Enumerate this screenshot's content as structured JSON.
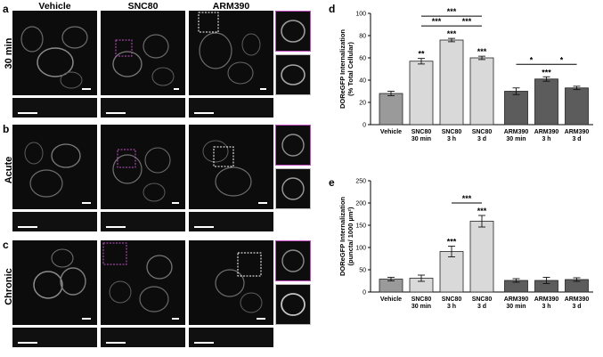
{
  "panel_letters": {
    "a": "a",
    "b": "b",
    "c": "c",
    "d": "d",
    "e": "e"
  },
  "micrograph_columns": [
    "Vehicle",
    "SNC80",
    "ARM390"
  ],
  "micrograph_rows": [
    "30 min",
    "Acute",
    "Chronic"
  ],
  "colors": {
    "vehicle_bar": "#9a9a9a",
    "snc80_bar": "#d9d9d9",
    "arm390_bar": "#5c5c5c",
    "inset_frame_snc80": "#c34fc3",
    "inset_frame_arm390": "#ffffff"
  },
  "chart_data": [
    {
      "type": "bar",
      "ylabel_line1": "DOReGFP Internalization",
      "ylabel_line2": "(% Total Cellular)",
      "categories": [
        {
          "l1": "Vehicle",
          "l2": ""
        },
        {
          "l1": "SNC80",
          "l2": "30 min"
        },
        {
          "l1": "SNC80",
          "l2": "3 h"
        },
        {
          "l1": "SNC80",
          "l2": "3 d"
        },
        {
          "l1": "ARM390",
          "l2": "30 min"
        },
        {
          "l1": "ARM390",
          "l2": "3 h"
        },
        {
          "l1": "ARM390",
          "l2": "3 d"
        }
      ],
      "values": [
        28,
        57,
        76,
        60,
        30,
        41,
        33
      ],
      "errors": [
        2,
        2.5,
        1.5,
        1.5,
        3,
        2,
        1.5
      ],
      "bar_colors": [
        "#9a9a9a",
        "#d9d9d9",
        "#d9d9d9",
        "#d9d9d9",
        "#5c5c5c",
        "#5c5c5c",
        "#5c5c5c"
      ],
      "ylim": [
        0,
        100
      ],
      "yticks": [
        0,
        20,
        40,
        60,
        80,
        100
      ],
      "bar_significance": [
        "",
        "**",
        "***",
        "***",
        "",
        "***",
        ""
      ],
      "comparisons": [
        {
          "from": 1,
          "to": 2,
          "label": "***",
          "level": 0
        },
        {
          "from": 2,
          "to": 3,
          "label": "***",
          "level": 0
        },
        {
          "from": 1,
          "to": 3,
          "label": "***",
          "level": 1
        },
        {
          "from": 4,
          "to": 5,
          "label": "*",
          "level": 0
        },
        {
          "from": 5,
          "to": 6,
          "label": "*",
          "level": 0
        }
      ]
    },
    {
      "type": "bar",
      "ylabel_line1": "DOReGFP Internalization",
      "ylabel_line2": "(puncta/ 1000 µm²)",
      "categories": [
        {
          "l1": "Vehicle",
          "l2": ""
        },
        {
          "l1": "SNC80",
          "l2": "30 min"
        },
        {
          "l1": "SNC80",
          "l2": "3 h"
        },
        {
          "l1": "SNC80",
          "l2": "3 d"
        },
        {
          "l1": "ARM390",
          "l2": "30 min"
        },
        {
          "l1": "ARM390",
          "l2": "3 h"
        },
        {
          "l1": "ARM390",
          "l2": "3 d"
        }
      ],
      "values": [
        29,
        31,
        91,
        159,
        26,
        26,
        28
      ],
      "errors": [
        4,
        7,
        12,
        13,
        4,
        7,
        4
      ],
      "bar_colors": [
        "#9a9a9a",
        "#d9d9d9",
        "#d9d9d9",
        "#d9d9d9",
        "#5c5c5c",
        "#5c5c5c",
        "#5c5c5c"
      ],
      "ylim": [
        0,
        250
      ],
      "yticks": [
        0,
        50,
        100,
        150,
        200,
        250
      ],
      "bar_significance": [
        "",
        "",
        "***",
        "***",
        "",
        "",
        ""
      ],
      "comparisons": [
        {
          "from": 2,
          "to": 3,
          "label": "***",
          "level": 0
        }
      ]
    }
  ]
}
